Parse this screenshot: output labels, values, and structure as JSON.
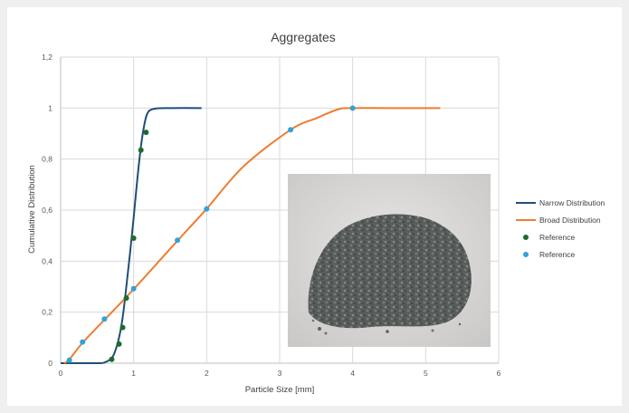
{
  "chart_data": {
    "type": "line",
    "title": "Aggregates",
    "xlabel": "Particle Size [mm]",
    "ylabel": "Cumulative Distribution",
    "xlim": [
      0,
      6
    ],
    "ylim": [
      0,
      1.2
    ],
    "xticks": [
      0,
      1,
      2,
      3,
      4,
      5,
      6
    ],
    "xtick_labels": [
      "0",
      "1",
      "2",
      "3",
      "4",
      "5",
      "6"
    ],
    "yticks": [
      0,
      0.2,
      0.4,
      0.6,
      0.8,
      1,
      1.2
    ],
    "ytick_labels": [
      "0",
      "0,2",
      "0,4",
      "0,6",
      "0,8",
      "1",
      "1,2"
    ],
    "grid": true,
    "legend_position": "right",
    "series": [
      {
        "name": "Narrow Distribution",
        "kind": "line",
        "color": "#1f4e79",
        "x": [
          0,
          0.5,
          0.6,
          0.7,
          0.75,
          0.8,
          0.85,
          0.9,
          0.95,
          1.0,
          1.05,
          1.1,
          1.15,
          1.2,
          1.3,
          1.5,
          1.93
        ],
        "y": [
          0,
          0.0,
          0.003,
          0.02,
          0.05,
          0.1,
          0.18,
          0.3,
          0.43,
          0.57,
          0.72,
          0.85,
          0.94,
          0.985,
          0.998,
          1.0,
          1.0
        ]
      },
      {
        "name": "Broad Distribution",
        "kind": "line",
        "color": "#ed7d31",
        "x": [
          0.05,
          0.12,
          0.3,
          0.6,
          1.0,
          1.6,
          2.0,
          2.5,
          3.15,
          3.5,
          3.8,
          4.0,
          4.5,
          5.2
        ],
        "y": [
          0,
          0.015,
          0.08,
          0.17,
          0.29,
          0.48,
          0.605,
          0.77,
          0.915,
          0.96,
          0.995,
          1.0,
          1.0,
          1.0
        ]
      },
      {
        "name": "Reference",
        "kind": "scatter",
        "color": "#1e6b2e",
        "x": [
          0.7,
          0.8,
          0.85,
          0.9,
          1.0,
          1.1,
          1.17
        ],
        "y": [
          0.015,
          0.075,
          0.14,
          0.255,
          0.49,
          0.835,
          0.905
        ]
      },
      {
        "name": "Reference",
        "kind": "scatter",
        "color": "#2fa3dc",
        "x": [
          0.12,
          0.3,
          0.6,
          1.0,
          1.6,
          2.0,
          3.15,
          4.0
        ],
        "y": [
          0.012,
          0.083,
          0.173,
          0.292,
          0.482,
          0.605,
          0.915,
          1.0
        ]
      }
    ]
  }
}
